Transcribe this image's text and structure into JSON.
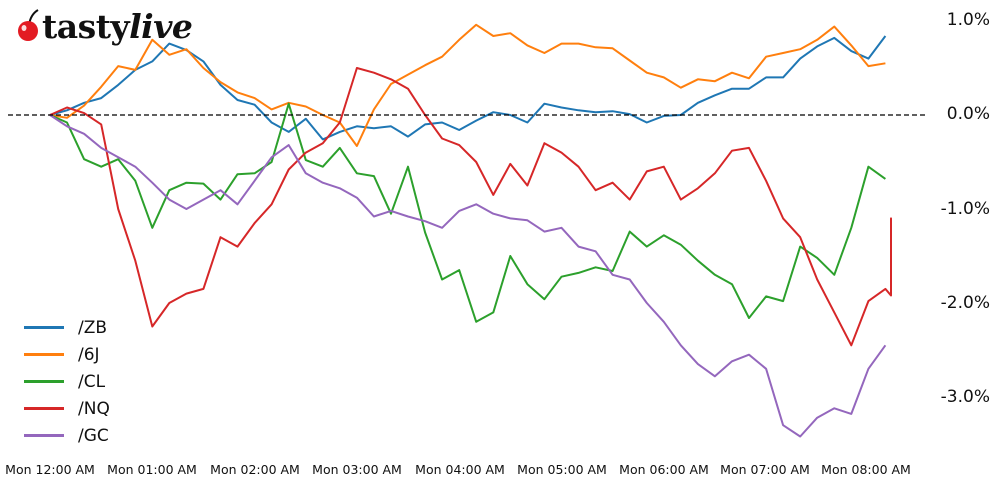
{
  "brand": {
    "name_part1": "tasty",
    "name_part2": "live",
    "logo_icon": "cherry-icon",
    "logo_color": "#e31b23"
  },
  "chart_data": {
    "type": "line",
    "title": "",
    "xlabel": "",
    "ylabel": "",
    "x_tick_labels": [
      "Mon 12:00 AM",
      "Mon 01:00 AM",
      "Mon 02:00 AM",
      "Mon 03:00 AM",
      "Mon 04:00 AM",
      "Mon 05:00 AM",
      "Mon 06:00 AM",
      "Mon 07:00 AM",
      "Mon 08:00 AM"
    ],
    "y_tick_labels": [
      "1.0%",
      "0.0%",
      "-1.0%",
      "-2.0%",
      "-3.0%"
    ],
    "y_ticks": [
      1.0,
      0.0,
      -1.0,
      -2.0,
      -3.0
    ],
    "ylim": [
      -3.5,
      1.05
    ],
    "x_unit": "minutes since Mon 12:00 AM",
    "x_step_minutes": 10,
    "grid": false,
    "reference_line": {
      "y": 0.0,
      "style": "dashed",
      "color": "#000000"
    },
    "legend_position": "lower left",
    "series": [
      {
        "name": "/ZB",
        "color": "#1f77b4",
        "values": [
          0.0,
          0.05,
          0.13,
          0.18,
          0.32,
          0.48,
          0.57,
          0.76,
          0.69,
          0.57,
          0.32,
          0.16,
          0.11,
          -0.08,
          -0.18,
          -0.04,
          -0.26,
          -0.18,
          -0.12,
          -0.14,
          -0.12,
          -0.23,
          -0.1,
          -0.08,
          -0.16,
          -0.06,
          0.03,
          0.0,
          -0.08,
          0.12,
          0.08,
          0.05,
          0.03,
          0.04,
          0.01,
          -0.08,
          -0.01,
          0.0,
          0.13,
          0.21,
          0.28,
          0.28,
          0.4,
          0.4,
          0.6,
          0.73,
          0.82,
          0.68,
          0.6,
          0.84
        ]
      },
      {
        "name": "/6J",
        "color": "#ff7f0e",
        "values": [
          0.0,
          -0.03,
          0.1,
          0.3,
          0.52,
          0.48,
          0.8,
          0.64,
          0.7,
          0.5,
          0.35,
          0.24,
          0.18,
          0.06,
          0.13,
          0.09,
          0.0,
          -0.08,
          -0.33,
          0.06,
          0.33,
          0.43,
          0.53,
          0.62,
          0.8,
          0.96,
          0.84,
          0.87,
          0.74,
          0.66,
          0.76,
          0.76,
          0.72,
          0.71,
          0.58,
          0.45,
          0.4,
          0.29,
          0.38,
          0.36,
          0.45,
          0.39,
          0.62,
          0.66,
          0.7,
          0.8,
          0.94,
          0.74,
          0.52,
          0.55
        ]
      },
      {
        "name": "/CL",
        "color": "#2ca02c",
        "values": [
          0.0,
          -0.08,
          -0.47,
          -0.55,
          -0.47,
          -0.7,
          -1.2,
          -0.8,
          -0.72,
          -0.73,
          -0.9,
          -0.63,
          -0.62,
          -0.5,
          0.12,
          -0.48,
          -0.55,
          -0.35,
          -0.62,
          -0.65,
          -1.05,
          -0.55,
          -1.25,
          -1.75,
          -1.65,
          -2.2,
          -2.1,
          -1.5,
          -1.8,
          -1.96,
          -1.72,
          -1.68,
          -1.62,
          -1.66,
          -1.24,
          -1.4,
          -1.28,
          -1.38,
          -1.55,
          -1.7,
          -1.8,
          -2.16,
          -1.93,
          -1.98,
          -1.4,
          -1.52,
          -1.7,
          -1.2,
          -0.55,
          -0.68
        ]
      },
      {
        "name": "/NQ",
        "color": "#d62728",
        "values": [
          0.0,
          0.08,
          0.02,
          -0.1,
          -1.0,
          -1.55,
          -2.25,
          -2.0,
          -1.9,
          -1.85,
          -1.3,
          -1.4,
          -1.15,
          -0.95,
          -0.58,
          -0.4,
          -0.3,
          -0.08,
          0.5,
          0.45,
          0.38,
          0.28,
          0.0,
          -0.25,
          -0.32,
          -0.5,
          -0.85,
          -0.52,
          -0.75,
          -0.3,
          -0.4,
          -0.55,
          -0.8,
          -0.72,
          -0.9,
          -0.6,
          -0.55,
          -0.9,
          -0.78,
          -0.62,
          -0.38,
          -0.35,
          -0.7,
          -1.1,
          -1.3,
          -1.75,
          -2.1,
          -2.45,
          -1.98,
          -1.85,
          -1.92,
          -1.55,
          -1.1,
          -1.3
        ]
      },
      {
        "name": "/GC",
        "color": "#9467bd",
        "values": [
          0.0,
          -0.12,
          -0.2,
          -0.35,
          -0.45,
          -0.55,
          -0.72,
          -0.9,
          -1.0,
          -0.9,
          -0.8,
          -0.95,
          -0.7,
          -0.45,
          -0.32,
          -0.62,
          -0.72,
          -0.78,
          -0.88,
          -1.08,
          -1.02,
          -1.08,
          -1.13,
          -1.2,
          -1.02,
          -0.95,
          -1.05,
          -1.1,
          -1.12,
          -1.24,
          -1.2,
          -1.4,
          -1.45,
          -1.7,
          -1.75,
          -2.0,
          -2.2,
          -2.45,
          -2.65,
          -2.78,
          -2.62,
          -2.55,
          -2.7,
          -3.3,
          -3.42,
          -3.22,
          -3.12,
          -3.18,
          -2.7,
          -2.45
        ]
      }
    ]
  }
}
